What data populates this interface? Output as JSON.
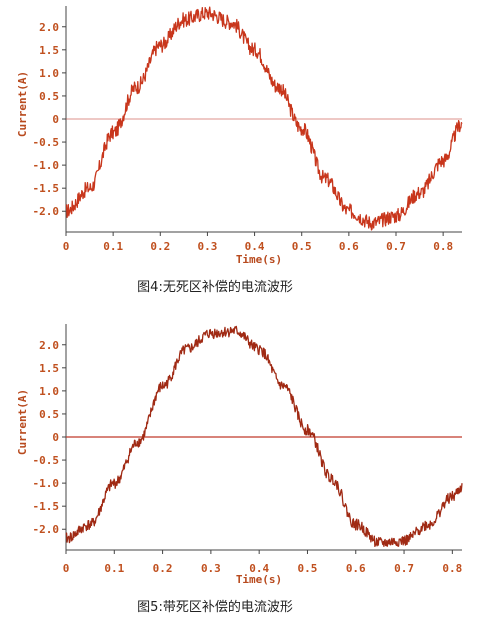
{
  "chart_data": [
    {
      "type": "line",
      "title": "",
      "xlabel": "Time(s)",
      "ylabel": "Current(A)",
      "xlim": [
        0,
        0.84
      ],
      "ylim": [
        -2.45,
        2.45
      ],
      "x_ticks": [
        "0",
        "0.1",
        "0.2",
        "0.3",
        "0.4",
        "0.5",
        "0.6",
        "0.7",
        "0.8"
      ],
      "y_ticks": [
        "2.0",
        "1.5",
        "1.0",
        "0.5",
        "0",
        "-0.5",
        "-1.0",
        "-1.5",
        "-2.0"
      ],
      "zero_line": true,
      "series": [
        {
          "color": "#c8361c",
          "x": [
            0,
            0.05,
            0.1,
            0.15,
            0.2,
            0.25,
            0.3,
            0.35,
            0.4,
            0.45,
            0.5,
            0.55,
            0.6,
            0.65,
            0.7,
            0.75,
            0.8,
            0.84
          ],
          "y": [
            -2.0,
            -1.5,
            -0.3,
            0.7,
            1.6,
            2.15,
            2.3,
            2.1,
            1.5,
            0.7,
            -0.2,
            -1.3,
            -2.0,
            -2.25,
            -2.1,
            -1.6,
            -0.9,
            -0.1
          ]
        }
      ]
    },
    {
      "type": "line",
      "title": "",
      "xlabel": "Time(s)",
      "ylabel": "Current(A)",
      "xlim": [
        0,
        0.82
      ],
      "ylim": [
        -2.45,
        2.45
      ],
      "x_ticks": [
        "0",
        "0.1",
        "0.2",
        "0.3",
        "0.4",
        "0.5",
        "0.6",
        "0.7",
        "0.8"
      ],
      "y_ticks": [
        "2.0",
        "1.5",
        "1.0",
        "0.5",
        "0",
        "-0.5",
        "-1.0",
        "-1.5",
        "-2.0"
      ],
      "zero_line": true,
      "series": [
        {
          "color": "#a02a14",
          "x": [
            0,
            0.05,
            0.1,
            0.15,
            0.2,
            0.25,
            0.3,
            0.35,
            0.4,
            0.45,
            0.5,
            0.55,
            0.6,
            0.65,
            0.7,
            0.75,
            0.8,
            0.82
          ],
          "y": [
            -2.2,
            -1.9,
            -1.0,
            -0.1,
            1.1,
            1.9,
            2.25,
            2.3,
            1.9,
            1.1,
            0.15,
            -0.9,
            -1.9,
            -2.3,
            -2.25,
            -1.9,
            -1.3,
            -1.1
          ]
        }
      ]
    }
  ],
  "captions": {
    "fig4": "图4:无死区补偿的电流波形",
    "fig5": "图5:带死区补偿的电流波形"
  },
  "colors": {
    "axis": "#c0501f",
    "zero_line": "#c0392b",
    "frame": "#444444"
  }
}
